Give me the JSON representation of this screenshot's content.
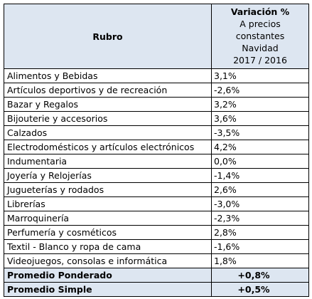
{
  "table": {
    "header": {
      "rubro": "Rubro",
      "variacion_title": "Variación %",
      "variacion_sub": [
        "A precios",
        "constantes",
        "Navidad",
        "2017 / 2016"
      ]
    },
    "rows": [
      {
        "rubro": "Alimentos y Bebidas",
        "valor": "3,1%"
      },
      {
        "rubro": "Artículos deportivos y de recreación",
        "valor": "-2,6%"
      },
      {
        "rubro": "Bazar y Regalos",
        "valor": "3,2%"
      },
      {
        "rubro": "Bijouterie y accesorios",
        "valor": "3,6%"
      },
      {
        "rubro": "Calzados",
        "valor": "-3,5%"
      },
      {
        "rubro": "Electrodomésticos y artículos electrónicos",
        "valor": "4,2%"
      },
      {
        "rubro": "Indumentaria",
        "valor": "0,0%"
      },
      {
        "rubro": "Joyería y Relojerías",
        "valor": "-1,4%"
      },
      {
        "rubro": "Jugueterías y rodados",
        "valor": "2,6%"
      },
      {
        "rubro": "Librerías",
        "valor": "-3,0%"
      },
      {
        "rubro": "Marroquinería",
        "valor": "-2,3%"
      },
      {
        "rubro": "Perfumería y cosméticos",
        "valor": "2,8%"
      },
      {
        "rubro": "Textil - Blanco y ropa de cama",
        "valor": "-1,6%"
      },
      {
        "rubro": "Videojuegos, consolas e informática",
        "valor": "1,8%"
      }
    ],
    "summary": [
      {
        "rubro": "Promedio Ponderado",
        "valor": "+0,8%"
      },
      {
        "rubro": "Promedio Simple",
        "valor": "+0,5%"
      }
    ],
    "colors": {
      "header_bg": "#dde6f1",
      "border": "#000000"
    }
  }
}
